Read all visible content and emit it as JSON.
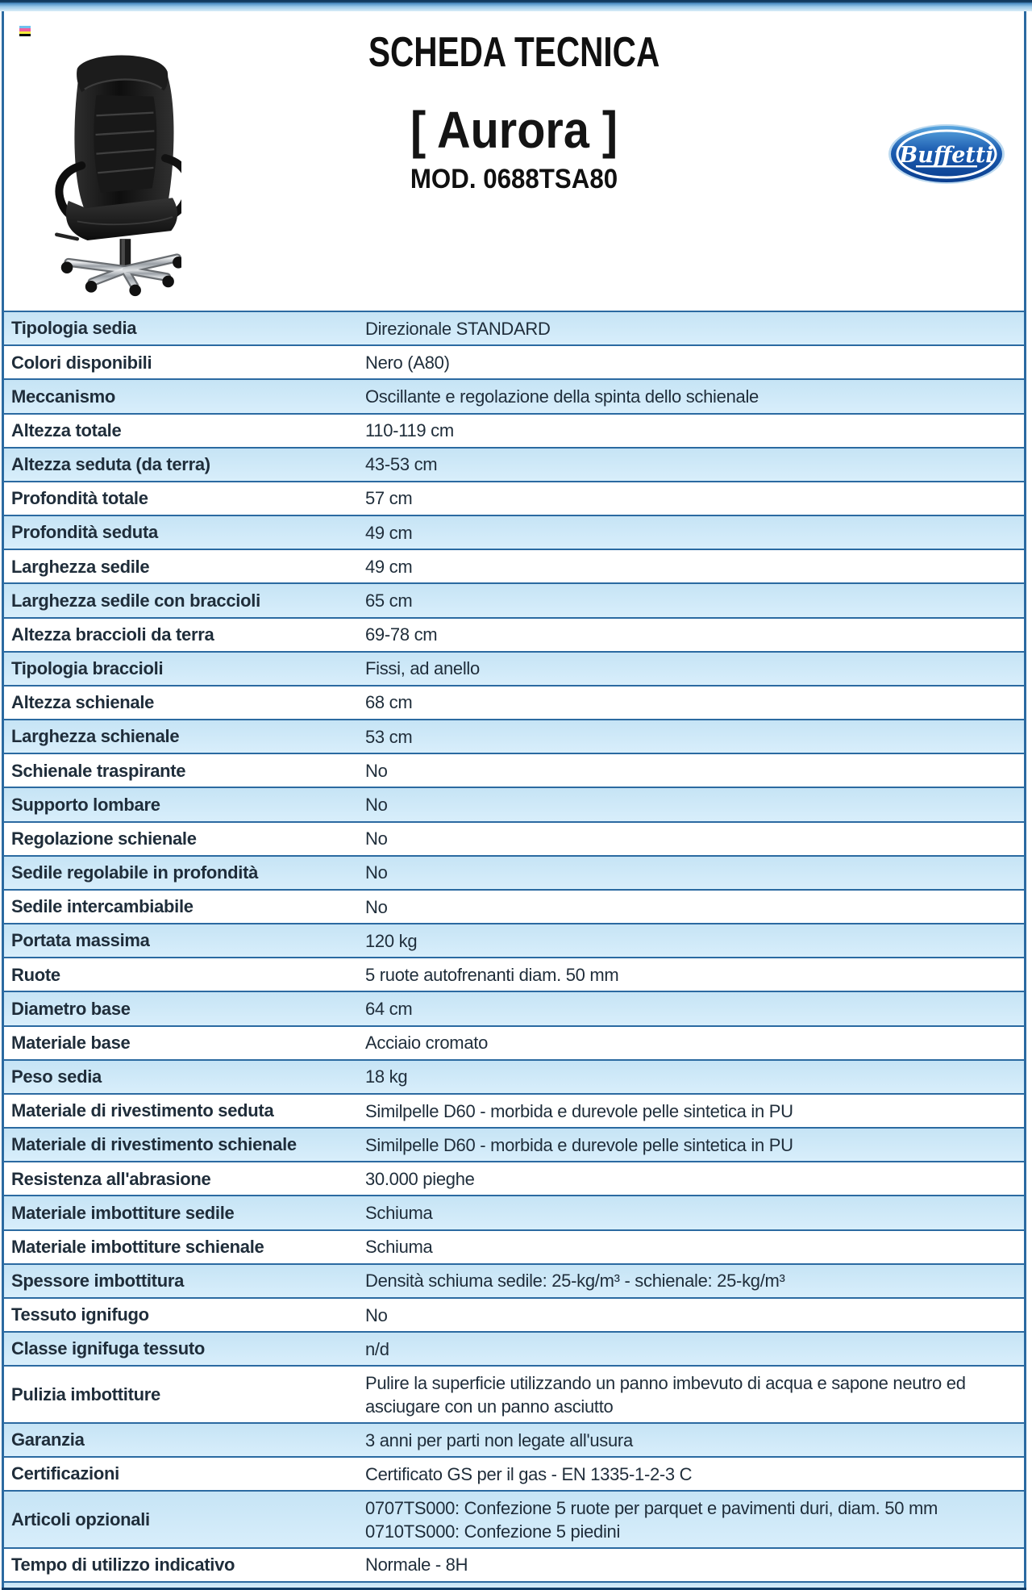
{
  "header": {
    "title": "SCHEDA TECNICA",
    "product_name": "[ Aurora ]",
    "model": "MOD. 0688TSA80",
    "brand": "Buffetti"
  },
  "icons": {
    "color_bar_icon": "cmyk-stripes",
    "chair_image": "black-executive-office-chair",
    "brand_logo": "buffetti-oval-logo"
  },
  "colors": {
    "row_blue": "#cde9f8",
    "row_border_blue": "#2b6aa1",
    "frame_navy": "#123c66",
    "text_ink": "#1f2d3a",
    "logo_blue_dark": "#0a3e8f",
    "logo_blue_light": "#4f9ad8",
    "stripe_cyan": "#6fc1ef",
    "stripe_pink": "#f0609e",
    "stripe_yellow": "#f5ee3b",
    "stripe_black": "#0a0a0a"
  },
  "specs": [
    {
      "label": "Tipologia sedia",
      "value": "Direzionale STANDARD"
    },
    {
      "label": "Colori disponibili",
      "value": "Nero (A80)"
    },
    {
      "label": "Meccanismo",
      "value": "Oscillante e regolazione della spinta dello schienale"
    },
    {
      "label": "Altezza totale",
      "value": "110-119 cm"
    },
    {
      "label": "Altezza seduta (da terra)",
      "value": "43-53 cm"
    },
    {
      "label": "Profondità totale",
      "value": "57 cm"
    },
    {
      "label": "Profondità seduta",
      "value": "49 cm"
    },
    {
      "label": "Larghezza sedile",
      "value": "49 cm"
    },
    {
      "label": "Larghezza sedile con braccioli",
      "value": "65 cm"
    },
    {
      "label": "Altezza braccioli da terra",
      "value": "69-78 cm"
    },
    {
      "label": "Tipologia braccioli",
      "value": "Fissi, ad anello"
    },
    {
      "label": "Altezza schienale",
      "value": "68 cm"
    },
    {
      "label": "Larghezza schienale",
      "value": "53 cm"
    },
    {
      "label": "Schienale traspirante",
      "value": "No"
    },
    {
      "label": "Supporto lombare",
      "value": "No"
    },
    {
      "label": "Regolazione schienale",
      "value": "No"
    },
    {
      "label": "Sedile regolabile in profondità",
      "value": "No"
    },
    {
      "label": "Sedile intercambiabile",
      "value": "No"
    },
    {
      "label": "Portata massima",
      "value": "120 kg"
    },
    {
      "label": "Ruote",
      "value": "5 ruote autofrenanti diam. 50 mm"
    },
    {
      "label": "Diametro base",
      "value": "64 cm"
    },
    {
      "label": "Materiale base",
      "value": "Acciaio cromato"
    },
    {
      "label": "Peso sedia",
      "value": "18 kg"
    },
    {
      "label": "Materiale di rivestimento seduta",
      "value": "Similpelle D60 - morbida e durevole pelle sintetica in PU"
    },
    {
      "label": "Materiale di rivestimento schienale",
      "value": "Similpelle D60 - morbida e durevole pelle sintetica in PU"
    },
    {
      "label": "Resistenza all'abrasione",
      "value": "30.000 pieghe"
    },
    {
      "label": "Materiale imbottiture sedile",
      "value": "Schiuma"
    },
    {
      "label": "Materiale imbottiture schienale",
      "value": "Schiuma"
    },
    {
      "label": "Spessore imbottitura",
      "value": "Densità schiuma sedile: 25-kg/m³ - schienale: 25-kg/m³"
    },
    {
      "label": "Tessuto ignifugo",
      "value": "No"
    },
    {
      "label": "Classe ignifuga tessuto",
      "value": "n/d"
    },
    {
      "label": "Pulizia imbottiture",
      "value": "Pulire la superficie utilizzando un panno imbevuto di acqua e sapone neutro ed asciugare con un panno asciutto"
    },
    {
      "label": "Garanzia",
      "value": "3 anni per parti non legate all'usura"
    },
    {
      "label": "Certificazioni",
      "value": "Certificato GS per il gas - EN 1335-1-2-3 C"
    },
    {
      "label": "Articoli opzionali",
      "value": "0707TS000: Confezione 5 ruote per parquet e pavimenti duri, diam. 50 mm\n0710TS000: Confezione 5 piedini"
    },
    {
      "label": "Tempo di utilizzo indicativo",
      "value": "Normale - 8H"
    }
  ]
}
